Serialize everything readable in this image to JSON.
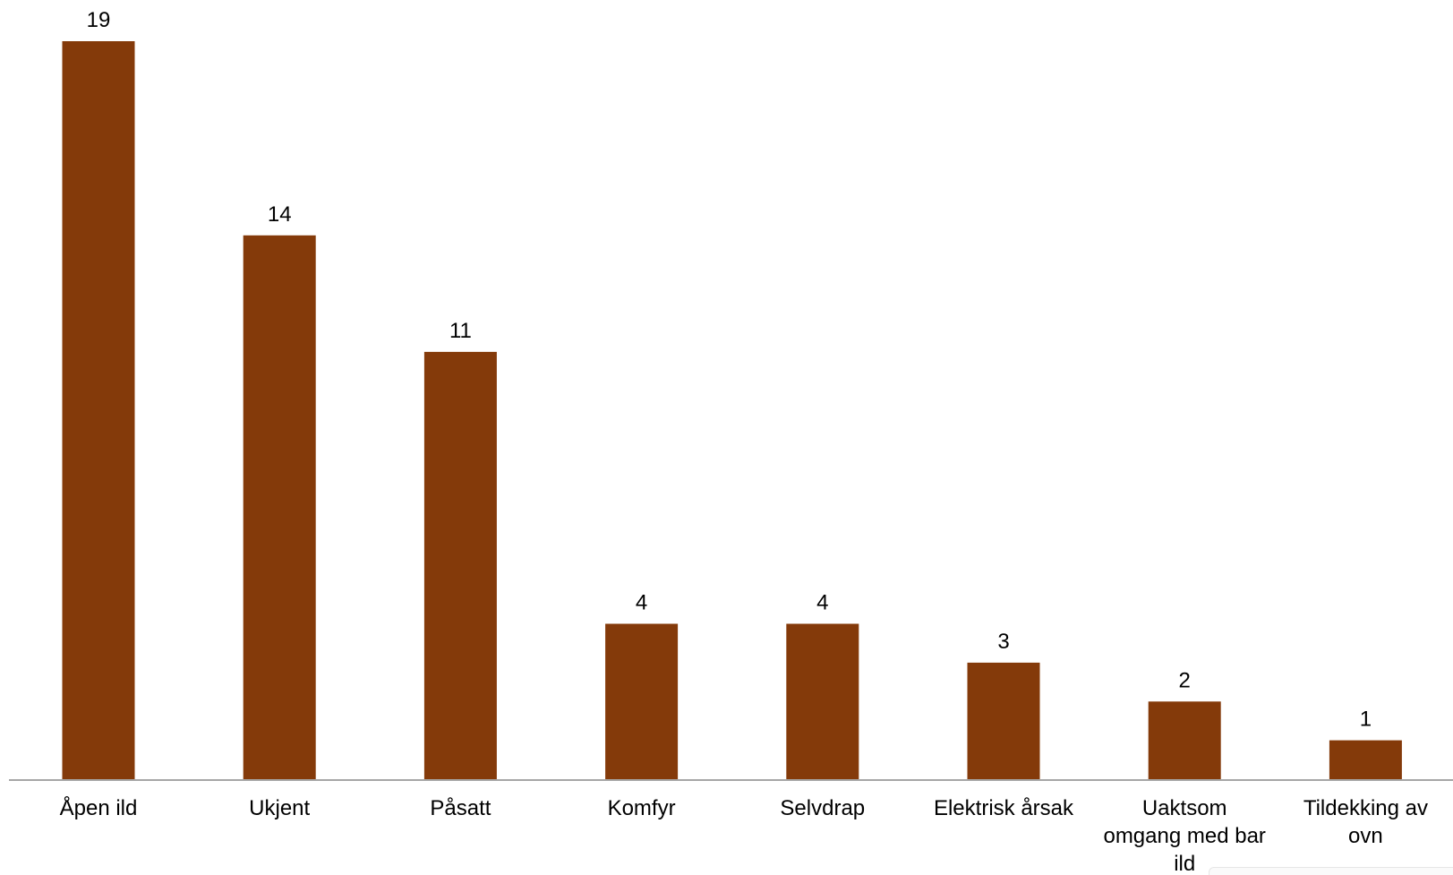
{
  "chart_data": {
    "type": "bar",
    "categories": [
      [
        "Åpen ild"
      ],
      [
        "Ukjent"
      ],
      [
        "Påsatt"
      ],
      [
        "Komfyr"
      ],
      [
        "Selvdrap"
      ],
      [
        "Elektrisk årsak"
      ],
      [
        "Uaktsom",
        "omgang med bar",
        "ild"
      ],
      [
        "Tildekking av",
        "ovn"
      ]
    ],
    "values": [
      19,
      14,
      11,
      4,
      4,
      3,
      2,
      1
    ],
    "data_labels": [
      "19",
      "14",
      "11",
      "4",
      "4",
      "3",
      "2",
      "1"
    ],
    "ylim": [
      0,
      19
    ],
    "grid": false,
    "legend": "none",
    "colors": {
      "bar": "#843A0A",
      "axis": "#A6A6A6",
      "text": "#000000"
    }
  }
}
